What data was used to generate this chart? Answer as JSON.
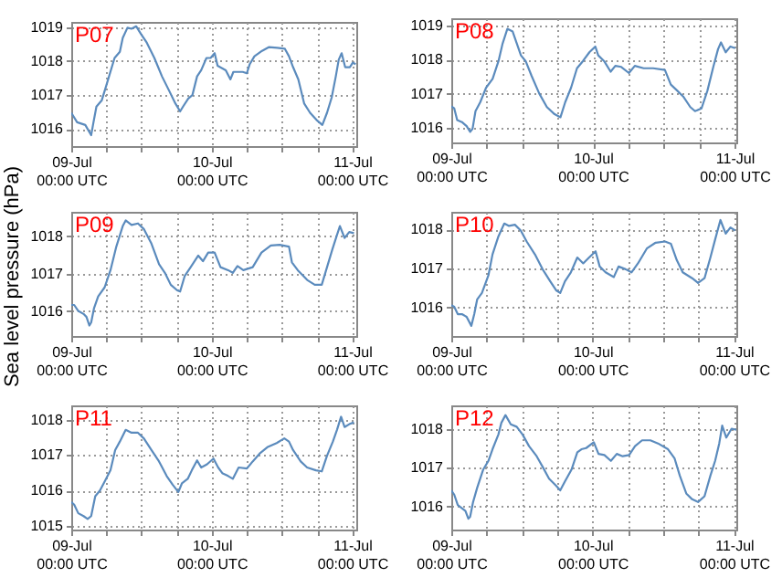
{
  "chart_data": [
    {
      "type": "line",
      "title": "P07",
      "xlim": [
        "--07-09T00:00",
        "--07-11T00:42"
      ],
      "ylim": [
        1015.5,
        1019.15
      ],
      "yticks": [
        1016,
        1017,
        1018,
        1019
      ],
      "grid": true,
      "xticks": [
        {
          "value": "--07-09T00:00",
          "label": "09-Jul\n00:00 UTC"
        },
        {
          "value": "--07-09T06:00",
          "label": null
        },
        {
          "value": "--07-09T12:00",
          "label": null
        },
        {
          "value": "--07-09T18:00",
          "label": null
        },
        {
          "value": "--07-10T00:00",
          "label": "10-Jul\n00:00 UTC"
        },
        {
          "value": "--07-10T06:00",
          "label": null
        },
        {
          "value": "--07-10T12:00",
          "label": null
        },
        {
          "value": "--07-10T18:00",
          "label": null
        },
        {
          "value": "--07-11T00:00",
          "label": "11-Jul\n00:00 UTC"
        }
      ],
      "series": [
        {
          "color": "#5b8bbd",
          "x": [
            "--07-09T00:00",
            "--07-09T01:00",
            "--07-09T02:24",
            "--07-09T03:24",
            "--07-09T03:48",
            "--07-09T04:18",
            "--07-09T05:12",
            "--07-09T06:00",
            "--07-09T07:24",
            "--07-09T08:18",
            "--07-09T08:48",
            "--07-09T09:36",
            "--07-09T10:18",
            "--07-09T11:06",
            "--07-09T11:54",
            "--07-09T12:54",
            "--07-09T14:12",
            "--07-09T15:30",
            "--07-09T16:48",
            "--07-09T17:48",
            "--07-09T18:36",
            "--07-09T19:06",
            "--07-09T20:00",
            "--07-09T20:42",
            "--07-09T21:30",
            "--07-09T22:12",
            "--07-09T23:06",
            "--07-09T23:48",
            "--07-10T00:30",
            "--07-10T01:00",
            "--07-10T02:24",
            "--07-10T03:12",
            "--07-10T03:42",
            "--07-10T05:18",
            "--07-10T06:00",
            "--07-10T06:30",
            "--07-10T07:18",
            "--07-10T08:36",
            "--07-10T09:48",
            "--07-10T11:12",
            "--07-10T12:30",
            "--07-10T13:12",
            "--07-10T13:54",
            "--07-10T14:48",
            "--07-10T15:48",
            "--07-10T16:48",
            "--07-10T17:54",
            "--07-10T18:54",
            "--07-10T19:42",
            "--07-10T20:30",
            "--07-10T21:12",
            "--07-10T21:42",
            "--07-10T22:12",
            "--07-10T22:48",
            "--07-10T23:36",
            "--07-11T00:06",
            "--07-11T00:36"
          ],
          "values": [
            1016.48,
            1016.2,
            1016.12,
            1015.82,
            1016.2,
            1016.66,
            1016.84,
            1017.29,
            1018.09,
            1018.27,
            1018.68,
            1018.98,
            1018.95,
            1019.02,
            1018.8,
            1018.54,
            1018.09,
            1017.55,
            1017.1,
            1016.75,
            1016.52,
            1016.66,
            1016.9,
            1017.0,
            1017.55,
            1017.73,
            1018.09,
            1018.09,
            1018.23,
            1017.86,
            1017.73,
            1017.46,
            1017.68,
            1017.68,
            1017.64,
            1017.91,
            1018.14,
            1018.3,
            1018.41,
            1018.39,
            1018.36,
            1018.14,
            1017.82,
            1017.46,
            1016.75,
            1016.48,
            1016.27,
            1016.12,
            1016.48,
            1016.93,
            1017.55,
            1018.04,
            1018.23,
            1017.82,
            1017.82,
            1017.95,
            1017.91
          ]
        }
      ]
    },
    {
      "type": "line",
      "title": "P08",
      "xlim": [
        "--07-09T00:00",
        "--07-11T00:18"
      ],
      "ylim": [
        1015.57,
        1019.22
      ],
      "yticks": [
        1016,
        1017,
        1018,
        1019
      ],
      "grid": true,
      "xticks": [
        {
          "value": "--07-09T00:00",
          "label": "09-Jul\n00:00 UTC"
        },
        {
          "value": "--07-09T06:00",
          "label": null
        },
        {
          "value": "--07-09T12:00",
          "label": null
        },
        {
          "value": "--07-09T18:00",
          "label": null
        },
        {
          "value": "--07-10T00:00",
          "label": "10-Jul\n00:00 UTC"
        },
        {
          "value": "--07-10T06:00",
          "label": null
        },
        {
          "value": "--07-10T12:00",
          "label": null
        },
        {
          "value": "--07-10T18:00",
          "label": null
        },
        {
          "value": "--07-11T00:00",
          "label": "11-Jul\n00:00 UTC"
        }
      ],
      "series": [
        {
          "color": "#5b8bbd",
          "x": [
            "--07-09T00:00",
            "--07-09T00:30",
            "--07-09T01:00",
            "--07-09T01:48",
            "--07-09T02:36",
            "--07-09T03:12",
            "--07-09T03:36",
            "--07-09T04:06",
            "--07-09T04:54",
            "--07-09T05:54",
            "--07-09T07:00",
            "--07-09T08:00",
            "--07-09T08:42",
            "--07-09T09:30",
            "--07-09T10:24",
            "--07-09T11:06",
            "--07-09T11:48",
            "--07-09T12:36",
            "--07-09T13:36",
            "--07-09T14:54",
            "--07-09T16:12",
            "--07-09T17:30",
            "--07-09T18:30",
            "--07-09T19:18",
            "--07-09T20:18",
            "--07-09T21:18",
            "--07-09T22:18",
            "--07-09T23:24",
            "--07-10T00:24",
            "--07-10T00:54",
            "--07-10T01:54",
            "--07-10T03:00",
            "--07-10T03:48",
            "--07-10T04:48",
            "--07-10T06:06",
            "--07-10T07:06",
            "--07-10T08:36",
            "--07-10T10:12",
            "--07-10T12:12",
            "--07-10T13:12",
            "--07-10T14:18",
            "--07-10T15:18",
            "--07-10T16:30",
            "--07-10T17:18",
            "--07-10T18:24",
            "--07-10T19:24",
            "--07-10T20:24",
            "--07-10T21:12",
            "--07-10T21:42",
            "--07-10T22:30",
            "--07-10T23:18",
            "--07-11T00:06"
          ],
          "values": [
            1016.63,
            1016.57,
            1016.23,
            1016.17,
            1016.05,
            1015.88,
            1015.97,
            1016.49,
            1016.75,
            1017.18,
            1017.44,
            1017.96,
            1018.48,
            1018.91,
            1018.83,
            1018.48,
            1018.13,
            1017.96,
            1017.53,
            1017.01,
            1016.61,
            1016.4,
            1016.31,
            1016.75,
            1017.18,
            1017.75,
            1017.96,
            1018.22,
            1018.39,
            1018.13,
            1017.96,
            1017.65,
            1017.82,
            1017.79,
            1017.61,
            1017.82,
            1017.75,
            1017.75,
            1017.7,
            1017.27,
            1017.09,
            1016.92,
            1016.61,
            1016.49,
            1016.57,
            1017.09,
            1017.79,
            1018.31,
            1018.51,
            1018.22,
            1018.39,
            1018.34
          ]
        }
      ]
    },
    {
      "type": "line",
      "title": "P09",
      "ylabel": "Sea level pressure (hPa)",
      "xlim": [
        "--07-09T00:00",
        "--07-11T00:42"
      ],
      "ylim": [
        1015.33,
        1018.65
      ],
      "yticks": [
        1016,
        1017,
        1018
      ],
      "grid": true,
      "xticks": [
        {
          "value": "--07-09T00:00",
          "label": "09-Jul\n00:00 UTC"
        },
        {
          "value": "--07-09T06:00",
          "label": null
        },
        {
          "value": "--07-09T12:00",
          "label": null
        },
        {
          "value": "--07-09T18:00",
          "label": null
        },
        {
          "value": "--07-10T00:00",
          "label": "10-Jul\n00:00 UTC"
        },
        {
          "value": "--07-10T06:00",
          "label": null
        },
        {
          "value": "--07-10T12:00",
          "label": null
        },
        {
          "value": "--07-10T18:00",
          "label": null
        },
        {
          "value": "--07-11T00:00",
          "label": "11-Jul\n00:00 UTC"
        }
      ],
      "series": [
        {
          "color": "#5b8bbd",
          "x": [
            "--07-09T00:00",
            "--07-09T00:30",
            "--07-09T01:12",
            "--07-09T02:06",
            "--07-09T02:36",
            "--07-09T03:06",
            "--07-09T03:24",
            "--07-09T03:54",
            "--07-09T04:36",
            "--07-09T05:42",
            "--07-09T06:42",
            "--07-09T07:42",
            "--07-09T08:48",
            "--07-09T09:18",
            "--07-09T10:18",
            "--07-09T11:24",
            "--07-09T12:24",
            "--07-09T13:42",
            "--07-09T15:00",
            "--07-09T16:00",
            "--07-09T17:00",
            "--07-09T18:06",
            "--07-09T18:36",
            "--07-09T19:24",
            "--07-09T20:24",
            "--07-09T21:42",
            "--07-09T22:30",
            "--07-09T23:24",
            "--07-10T00:30",
            "--07-10T01:30",
            "--07-10T02:48",
            "--07-10T03:36",
            "--07-10T04:24",
            "--07-10T05:24",
            "--07-10T07:00",
            "--07-10T08:30",
            "--07-10T10:06",
            "--07-10T11:36",
            "--07-10T13:12",
            "--07-10T13:42",
            "--07-10T14:42",
            "--07-10T16:18",
            "--07-10T17:36",
            "--07-10T18:48",
            "--07-10T19:42",
            "--07-10T20:36",
            "--07-10T21:24",
            "--07-10T21:54",
            "--07-10T22:42",
            "--07-10T23:30",
            "--07-11T00:18"
          ],
          "values": [
            1016.16,
            1016.16,
            1016.0,
            1015.92,
            1015.84,
            1015.61,
            1015.69,
            1016.08,
            1016.39,
            1016.63,
            1017.09,
            1017.72,
            1018.27,
            1018.42,
            1018.3,
            1018.34,
            1018.19,
            1017.8,
            1017.25,
            1017.02,
            1016.7,
            1016.55,
            1016.52,
            1016.94,
            1017.17,
            1017.48,
            1017.33,
            1017.56,
            1017.56,
            1017.17,
            1017.09,
            1017.02,
            1017.2,
            1017.09,
            1017.17,
            1017.56,
            1017.75,
            1017.77,
            1017.72,
            1017.3,
            1017.09,
            1016.83,
            1016.7,
            1016.7,
            1017.17,
            1017.64,
            1018.03,
            1018.27,
            1017.95,
            1018.11,
            1018.08
          ]
        }
      ]
    },
    {
      "type": "line",
      "title": "P10",
      "xlim": [
        "--07-09T00:00",
        "--07-11T00:24"
      ],
      "ylim": [
        1015.27,
        1018.45
      ],
      "yticks": [
        1016,
        1017,
        1018
      ],
      "grid": true,
      "xticks": [
        {
          "value": "--07-09T00:00",
          "label": "09-Jul\n00:00 UTC"
        },
        {
          "value": "--07-09T06:00",
          "label": null
        },
        {
          "value": "--07-09T12:00",
          "label": null
        },
        {
          "value": "--07-09T18:00",
          "label": null
        },
        {
          "value": "--07-10T00:00",
          "label": "10-Jul\n00:00 UTC"
        },
        {
          "value": "--07-10T06:00",
          "label": null
        },
        {
          "value": "--07-10T12:00",
          "label": null
        },
        {
          "value": "--07-10T18:00",
          "label": null
        },
        {
          "value": "--07-11T00:00",
          "label": "11-Jul\n00:00 UTC"
        }
      ],
      "series": [
        {
          "color": "#5b8bbd",
          "x": [
            "--07-09T00:00",
            "--07-09T00:30",
            "--07-09T01:06",
            "--07-09T01:48",
            "--07-09T02:36",
            "--07-09T03:24",
            "--07-09T03:54",
            "--07-09T04:24",
            "--07-09T05:12",
            "--07-09T06:18",
            "--07-09T07:00",
            "--07-09T08:00",
            "--07-09T09:00",
            "--07-09T09:48",
            "--07-09T10:48",
            "--07-09T11:48",
            "--07-09T12:48",
            "--07-09T14:12",
            "--07-09T15:30",
            "--07-09T16:48",
            "--07-09T17:48",
            "--07-09T18:30",
            "--07-09T19:18",
            "--07-09T20:18",
            "--07-09T21:24",
            "--07-09T22:24",
            "--07-09T23:24",
            "--07-10T00:30",
            "--07-10T01:12",
            "--07-10T02:12",
            "--07-10T03:36",
            "--07-10T04:24",
            "--07-10T05:36",
            "--07-10T06:36",
            "--07-10T07:42",
            "--07-10T09:12",
            "--07-10T10:42",
            "--07-10T12:18",
            "--07-10T13:18",
            "--07-10T14:18",
            "--07-10T15:18",
            "--07-10T16:54",
            "--07-10T17:54",
            "--07-10T19:00",
            "--07-10T20:00",
            "--07-10T20:48",
            "--07-10T21:42",
            "--07-10T22:36",
            "--07-10T23:24",
            "--07-11T00:12"
          ],
          "values": [
            1016.06,
            1016.02,
            1015.83,
            1015.83,
            1015.76,
            1015.53,
            1015.83,
            1016.21,
            1016.37,
            1016.82,
            1017.36,
            1017.82,
            1018.15,
            1018.09,
            1018.12,
            1017.97,
            1017.69,
            1017.36,
            1016.98,
            1016.67,
            1016.44,
            1016.37,
            1016.67,
            1016.9,
            1017.28,
            1017.13,
            1017.28,
            1017.44,
            1017.05,
            1016.9,
            1016.78,
            1017.05,
            1016.98,
            1016.9,
            1017.13,
            1017.51,
            1017.66,
            1017.69,
            1017.63,
            1017.21,
            1016.9,
            1016.75,
            1016.63,
            1016.75,
            1017.28,
            1017.74,
            1018.24,
            1017.89,
            1018.05,
            1017.97
          ]
        }
      ]
    },
    {
      "type": "line",
      "title": "P11",
      "xlim": [
        "--07-09T00:00",
        "--07-11T00:42"
      ],
      "ylim": [
        1014.9,
        1018.4
      ],
      "yticks": [
        1015,
        1016,
        1017,
        1018
      ],
      "grid": true,
      "xticks": [
        {
          "value": "--07-09T00:00",
          "label": "09-Jul\n00:00 UTC"
        },
        {
          "value": "--07-09T06:00",
          "label": null
        },
        {
          "value": "--07-09T12:00",
          "label": null
        },
        {
          "value": "--07-09T18:00",
          "label": null
        },
        {
          "value": "--07-10T00:00",
          "label": "10-Jul\n00:00 UTC"
        },
        {
          "value": "--07-10T06:00",
          "label": null
        },
        {
          "value": "--07-10T12:00",
          "label": null
        },
        {
          "value": "--07-10T18:00",
          "label": null
        },
        {
          "value": "--07-11T00:00",
          "label": "11-Jul\n00:00 UTC"
        }
      ],
      "series": [
        {
          "color": "#5b8bbd",
          "x": [
            "--07-09T00:00",
            "--07-09T00:30",
            "--07-09T01:12",
            "--07-09T02:06",
            "--07-09T02:48",
            "--07-09T03:24",
            "--07-09T04:06",
            "--07-09T04:54",
            "--07-09T05:42",
            "--07-09T06:42",
            "--07-09T07:30",
            "--07-09T08:18",
            "--07-09T09:18",
            "--07-09T10:18",
            "--07-09T11:24",
            "--07-09T12:24",
            "--07-09T13:42",
            "--07-09T15:00",
            "--07-09T16:18",
            "--07-09T17:18",
            "--07-09T18:18",
            "--07-09T18:54",
            "--07-09T19:54",
            "--07-09T20:36",
            "--07-09T21:30",
            "--07-09T22:12",
            "--07-09T23:12",
            "--07-10T00:18",
            "--07-10T01:06",
            "--07-10T01:48",
            "--07-10T02:48",
            "--07-10T03:36",
            "--07-10T04:36",
            "--07-10T06:00",
            "--07-10T07:00",
            "--07-10T08:18",
            "--07-10T09:30",
            "--07-10T11:06",
            "--07-10T12:24",
            "--07-10T13:12",
            "--07-10T13:54",
            "--07-10T15:12",
            "--07-10T16:18",
            "--07-10T17:48",
            "--07-10T18:48",
            "--07-10T19:42",
            "--07-10T20:42",
            "--07-10T21:24",
            "--07-10T22:06",
            "--07-10T22:42",
            "--07-10T23:30",
            "--07-11T00:18"
          ],
          "values": [
            1015.68,
            1015.6,
            1015.36,
            1015.28,
            1015.2,
            1015.28,
            1015.84,
            1016.0,
            1016.25,
            1016.57,
            1017.14,
            1017.38,
            1017.71,
            1017.63,
            1017.63,
            1017.47,
            1017.14,
            1016.82,
            1016.41,
            1016.17,
            1015.96,
            1016.2,
            1016.33,
            1016.57,
            1016.85,
            1016.65,
            1016.74,
            1016.9,
            1016.65,
            1016.49,
            1016.41,
            1016.33,
            1016.65,
            1016.62,
            1016.82,
            1017.06,
            1017.22,
            1017.34,
            1017.47,
            1017.38,
            1017.14,
            1016.82,
            1016.65,
            1016.57,
            1016.54,
            1016.98,
            1017.38,
            1017.71,
            1018.08,
            1017.79,
            1017.87,
            1017.92
          ]
        }
      ]
    },
    {
      "type": "line",
      "title": "P12",
      "xlim": [
        "--07-09T00:00",
        "--07-11T00:24"
      ],
      "ylim": [
        1015.4,
        1018.6
      ],
      "yticks": [
        1016,
        1017,
        1018
      ],
      "grid": true,
      "xticks": [
        {
          "value": "--07-09T00:00",
          "label": "09-Jul\n00:00 UTC"
        },
        {
          "value": "--07-09T06:00",
          "label": null
        },
        {
          "value": "--07-09T12:00",
          "label": null
        },
        {
          "value": "--07-09T18:00",
          "label": null
        },
        {
          "value": "--07-10T00:00",
          "label": "10-Jul\n00:00 UTC"
        },
        {
          "value": "--07-10T06:00",
          "label": null
        },
        {
          "value": "--07-10T12:00",
          "label": null
        },
        {
          "value": "--07-10T18:00",
          "label": null
        },
        {
          "value": "--07-11T00:00",
          "label": "11-Jul\n00:00 UTC"
        }
      ],
      "series": [
        {
          "color": "#5b8bbd",
          "x": [
            "--07-09T00:00",
            "--07-09T00:30",
            "--07-09T01:06",
            "--07-09T01:48",
            "--07-09T02:24",
            "--07-09T02:54",
            "--07-09T03:12",
            "--07-09T03:42",
            "--07-09T04:24",
            "--07-09T05:24",
            "--07-09T06:18",
            "--07-09T07:00",
            "--07-09T08:00",
            "--07-09T08:30",
            "--07-09T09:12",
            "--07-09T10:06",
            "--07-09T11:06",
            "--07-09T12:06",
            "--07-09T13:12",
            "--07-09T14:30",
            "--07-09T15:30",
            "--07-09T16:36",
            "--07-09T17:48",
            "--07-09T18:30",
            "--07-09T19:18",
            "--07-09T20:24",
            "--07-09T21:24",
            "--07-09T22:06",
            "--07-09T22:54",
            "--07-10T00:12",
            "--07-10T01:00",
            "--07-10T02:00",
            "--07-10T03:06",
            "--07-10T04:06",
            "--07-10T05:06",
            "--07-10T06:12",
            "--07-10T07:12",
            "--07-10T08:24",
            "--07-10T09:48",
            "--07-10T11:06",
            "--07-10T12:48",
            "--07-10T13:54",
            "--07-10T14:48",
            "--07-10T15:54",
            "--07-10T16:54",
            "--07-10T17:54",
            "--07-10T19:00",
            "--07-10T20:00",
            "--07-10T20:48",
            "--07-10T21:30",
            "--07-10T22:00",
            "--07-10T22:42",
            "--07-10T23:36",
            "--07-11T00:24"
          ],
          "values": [
            1016.41,
            1016.3,
            1016.03,
            1015.95,
            1015.88,
            1015.68,
            1015.73,
            1016.11,
            1016.48,
            1016.94,
            1017.17,
            1017.47,
            1017.85,
            1018.15,
            1018.35,
            1018.11,
            1018.05,
            1017.85,
            1017.55,
            1017.29,
            1017.02,
            1016.71,
            1016.53,
            1016.41,
            1016.64,
            1016.94,
            1017.39,
            1017.47,
            1017.5,
            1017.65,
            1017.35,
            1017.32,
            1017.17,
            1017.35,
            1017.29,
            1017.32,
            1017.55,
            1017.7,
            1017.7,
            1017.62,
            1017.47,
            1017.24,
            1016.79,
            1016.33,
            1016.18,
            1016.11,
            1016.26,
            1016.79,
            1017.17,
            1017.62,
            1018.08,
            1017.77,
            1018.0,
            1017.97
          ]
        }
      ]
    }
  ]
}
